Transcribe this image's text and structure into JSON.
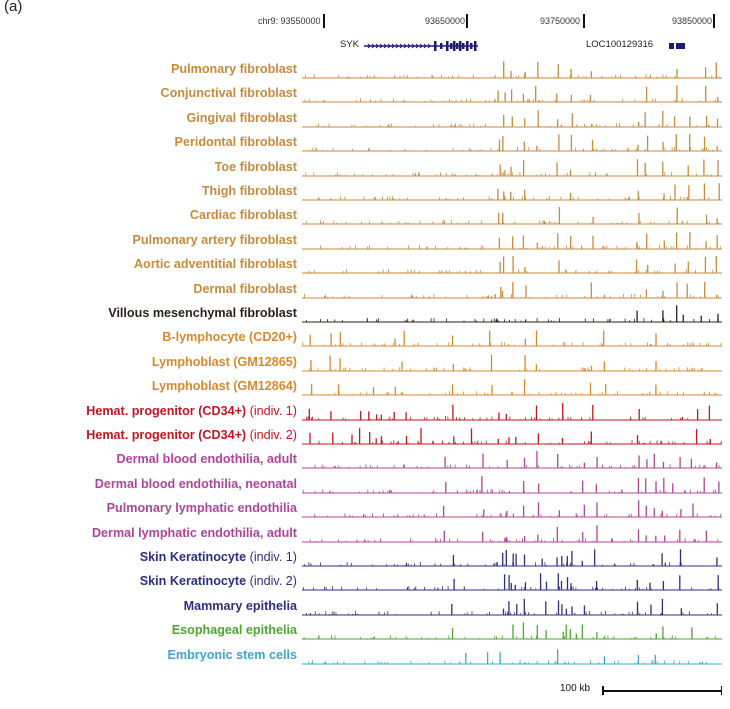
{
  "panel_label": "(a)",
  "coordinates": [
    "chr9: 93550000",
    "93650000",
    "93750000",
    "93850000"
  ],
  "genes": [
    {
      "name": "SYK",
      "strand": "right"
    },
    {
      "name": "LOC100129316",
      "strand": "right"
    }
  ],
  "scale_bar": "100 kb",
  "colors": {
    "fibroblast": "#c88a3c",
    "mesenchymal": "#2b1f1a",
    "lymphoid": "#d9892b",
    "hematopoietic": "#c4161c",
    "endothelial": "#b0449a",
    "keratinocyte": "#2e2f7f",
    "esophageal": "#4ea62e",
    "stem": "#3fa3d0"
  },
  "tracks": [
    {
      "name": "Pulmonary fibroblast",
      "suffix": "",
      "color_key": "fibroblast"
    },
    {
      "name": "Conjunctival fibroblast",
      "suffix": "",
      "color_key": "fibroblast"
    },
    {
      "name": "Gingival fibroblast",
      "suffix": "",
      "color_key": "fibroblast"
    },
    {
      "name": "Peridontal fibroblast",
      "suffix": "",
      "color_key": "fibroblast"
    },
    {
      "name": "Toe fibroblast",
      "suffix": "",
      "color_key": "fibroblast"
    },
    {
      "name": "Thigh fibroblast",
      "suffix": "",
      "color_key": "fibroblast"
    },
    {
      "name": "Cardiac fibroblast",
      "suffix": "",
      "color_key": "fibroblast"
    },
    {
      "name": "Pulmonary artery fibroblast",
      "suffix": "",
      "color_key": "fibroblast"
    },
    {
      "name": "Aortic adventitial fibroblast",
      "suffix": "",
      "color_key": "fibroblast"
    },
    {
      "name": "Dermal fibroblast",
      "suffix": "",
      "color_key": "fibroblast"
    },
    {
      "name": "Villous mesenchymal fibroblast",
      "suffix": "",
      "color_key": "mesenchymal"
    },
    {
      "name": "B-lymphocyte (CD20+)",
      "suffix": "",
      "color_key": "lymphoid"
    },
    {
      "name": "Lymphoblast (GM12865)",
      "suffix": "",
      "color_key": "lymphoid"
    },
    {
      "name": "Lymphoblast (GM12864)",
      "suffix": "",
      "color_key": "lymphoid"
    },
    {
      "name": "Hemat. progenitor (CD34+)",
      "suffix": " (indiv. 1)",
      "color_key": "hematopoietic"
    },
    {
      "name": "Hemat. progenitor (CD34+)",
      "suffix": " (indiv. 2)",
      "color_key": "hematopoietic"
    },
    {
      "name": "Dermal blood endothilia, adult",
      "suffix": "",
      "color_key": "endothelial"
    },
    {
      "name": "Dermal blood endothilia, neonatal",
      "suffix": "",
      "color_key": "endothelial"
    },
    {
      "name": "Pulmonary lymphatic endothilia",
      "suffix": "",
      "color_key": "endothelial"
    },
    {
      "name": "Dermal lymphatic endothilia, adult",
      "suffix": "",
      "color_key": "endothelial"
    },
    {
      "name": "Skin Keratinocyte",
      "suffix": " (indiv. 1)",
      "color_key": "keratinocyte"
    },
    {
      "name": "Skin Keratinocyte",
      "suffix": " (indiv. 2)",
      "color_key": "keratinocyte"
    },
    {
      "name": "Mammary epithelia",
      "suffix": "",
      "color_key": "keratinocyte"
    },
    {
      "name": "Esophageal epithelia",
      "suffix": "",
      "color_key": "esophageal"
    },
    {
      "name": "Embryonic stem cells",
      "suffix": "",
      "color_key": "stem"
    }
  ]
}
